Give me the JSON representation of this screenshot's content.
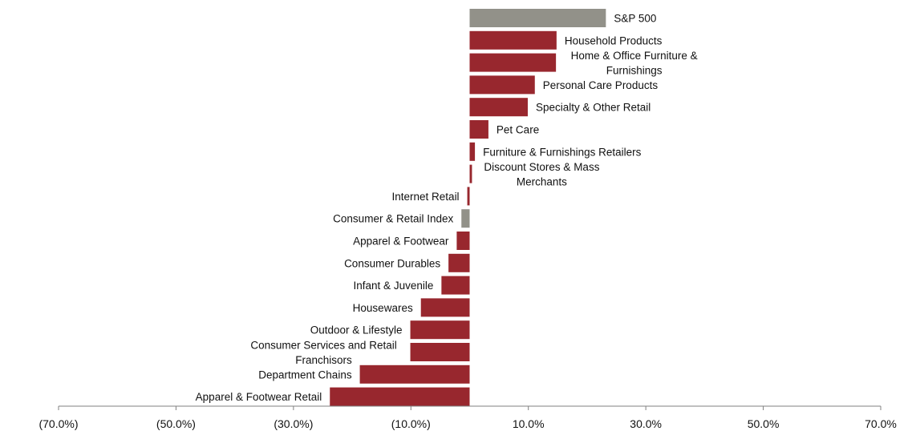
{
  "chart_data": {
    "type": "bar",
    "orientation": "horizontal",
    "title": "",
    "xlabel": "",
    "ylabel": "",
    "xlim": [
      -70,
      70
    ],
    "grid": false,
    "colors": {
      "default": "#98272e",
      "highlight": "#929189",
      "axis": "#808080"
    },
    "x_ticks": [
      -70,
      -50,
      -30,
      -10,
      10,
      30,
      50,
      70
    ],
    "x_tick_labels": [
      "(70.0%)",
      "(50.0%)",
      "(30.0%)",
      "(10.0%)",
      "10.0%",
      "30.0%",
      "50.0%",
      "70.0%"
    ],
    "bars": [
      {
        "label": "S&P 500",
        "value": 23.2,
        "highlight": true
      },
      {
        "label": "Household Products",
        "value": 14.8,
        "highlight": false
      },
      {
        "label": "Home & Office Furniture & Furnishings",
        "label_lines": [
          "Home & Office Furniture &",
          "Furnishings"
        ],
        "value": 14.7,
        "highlight": false
      },
      {
        "label": "Personal Care Products",
        "value": 11.1,
        "highlight": false
      },
      {
        "label": "Specialty & Other Retail",
        "value": 9.9,
        "highlight": false
      },
      {
        "label": "Pet Care",
        "value": 3.2,
        "highlight": false
      },
      {
        "label": "Furniture & Furnishings Retailers",
        "value": 0.9,
        "highlight": false
      },
      {
        "label": "Discount Stores & Mass Merchants",
        "label_lines": [
          "Discount Stores & Mass",
          "Merchants"
        ],
        "value": 0.4,
        "highlight": false
      },
      {
        "label": "Internet Retail",
        "value": -0.4,
        "highlight": false
      },
      {
        "label": "Consumer & Retail Index",
        "value": -1.4,
        "highlight": true
      },
      {
        "label": "Apparel & Footwear",
        "value": -2.2,
        "highlight": false
      },
      {
        "label": "Consumer Durables",
        "value": -3.6,
        "highlight": false
      },
      {
        "label": "Infant & Juvenile",
        "value": -4.8,
        "highlight": false
      },
      {
        "label": "Housewares",
        "value": -8.3,
        "highlight": false
      },
      {
        "label": "Outdoor & Lifestyle",
        "value": -10.1,
        "highlight": false
      },
      {
        "label": "Consumer Services and Retail Franchisors",
        "label_lines": [
          "Consumer Services and Retail",
          "Franchisors"
        ],
        "value": -10.1,
        "highlight": false
      },
      {
        "label": "Department Chains",
        "value": -18.7,
        "highlight": false
      },
      {
        "label": "Apparel & Footwear Retail",
        "value": -23.8,
        "highlight": false
      }
    ]
  }
}
